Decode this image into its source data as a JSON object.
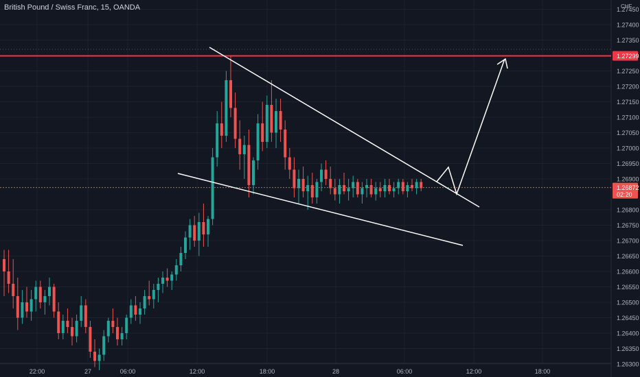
{
  "header": {
    "symbol_title": "British Pound / Swiss Franc, 15, OANDA"
  },
  "colors": {
    "background": "#131722",
    "grid": "#1e222d",
    "up": "#26a69a",
    "down": "#ef5350",
    "resistance_line": "#f23645",
    "drawing": "#ffffff",
    "axis_text": "#b2b5be",
    "current_price_line": "#ef5350"
  },
  "price_axis": {
    "currency": "CHF",
    "labels": [
      "1.27450",
      "1.27400",
      "1.27350",
      "1.27250",
      "1.27200",
      "1.27150",
      "1.27100",
      "1.27050",
      "1.27000",
      "1.26950",
      "1.26900",
      "1.26800",
      "1.26750",
      "1.26700",
      "1.26650",
      "1.26600",
      "1.26550",
      "1.26500",
      "1.26450",
      "1.26400",
      "1.26350",
      "1.26300"
    ],
    "resistance_label": "1.27299",
    "current_price_label": "1.26872",
    "countdown_label": "02:20"
  },
  "time_axis": {
    "labels": [
      "22:00",
      "27",
      "06:00",
      "12:00",
      "18:00",
      "28",
      "06:00",
      "12:00",
      "18:00"
    ]
  },
  "chart_data": {
    "type": "candlestick",
    "y_axis_unit": "CHF",
    "ylim": [
      1.2628,
      1.2748
    ],
    "time_range": [
      "26 20:00",
      "28 22:00"
    ],
    "interval": "15m",
    "resistance_level": 1.27299,
    "current_price": 1.26872,
    "candles": [
      [
        1.2664,
        1.2667,
        1.2652,
        1.266
      ],
      [
        1.266,
        1.2667,
        1.2653,
        1.2656
      ],
      [
        1.2656,
        1.2664,
        1.2648,
        1.2652
      ],
      [
        1.2652,
        1.2658,
        1.2641,
        1.2645
      ],
      [
        1.2645,
        1.2654,
        1.2643,
        1.265
      ],
      [
        1.265,
        1.2655,
        1.2645,
        1.2647
      ],
      [
        1.2647,
        1.2654,
        1.2644,
        1.2651
      ],
      [
        1.2651,
        1.2657,
        1.2647,
        1.2655
      ],
      [
        1.2655,
        1.2657,
        1.2648,
        1.265
      ],
      [
        1.265,
        1.2654,
        1.2646,
        1.2652
      ],
      [
        1.2652,
        1.2658,
        1.2649,
        1.2655
      ],
      [
        1.2655,
        1.2656,
        1.2645,
        1.2647
      ],
      [
        1.2647,
        1.265,
        1.2638,
        1.264
      ],
      [
        1.264,
        1.2646,
        1.2638,
        1.2644
      ],
      [
        1.2644,
        1.2648,
        1.264,
        1.2642
      ],
      [
        1.2642,
        1.2645,
        1.2636,
        1.2639
      ],
      [
        1.2639,
        1.2646,
        1.2637,
        1.2644
      ],
      [
        1.2644,
        1.2652,
        1.2642,
        1.2649
      ],
      [
        1.2649,
        1.2651,
        1.264,
        1.2642
      ],
      [
        1.2642,
        1.2644,
        1.2632,
        1.2634
      ],
      [
        1.2634,
        1.2638,
        1.2629,
        1.2631
      ],
      [
        1.2631,
        1.2635,
        1.2628,
        1.2633
      ],
      [
        1.2633,
        1.2641,
        1.2631,
        1.2639
      ],
      [
        1.2639,
        1.2645,
        1.2637,
        1.2644
      ],
      [
        1.2644,
        1.2648,
        1.264,
        1.2642
      ],
      [
        1.2642,
        1.2645,
        1.2636,
        1.2638
      ],
      [
        1.2638,
        1.2642,
        1.2636,
        1.264
      ],
      [
        1.264,
        1.2646,
        1.2638,
        1.2645
      ],
      [
        1.2645,
        1.2651,
        1.2643,
        1.2649
      ],
      [
        1.2649,
        1.2652,
        1.2644,
        1.2646
      ],
      [
        1.2646,
        1.265,
        1.2643,
        1.2648
      ],
      [
        1.2648,
        1.2654,
        1.2646,
        1.2652
      ],
      [
        1.2652,
        1.2657,
        1.2649,
        1.2651
      ],
      [
        1.2651,
        1.2656,
        1.2648,
        1.2654
      ],
      [
        1.2654,
        1.2658,
        1.265,
        1.2656
      ],
      [
        1.2656,
        1.266,
        1.2653,
        1.2658
      ],
      [
        1.2658,
        1.2661,
        1.2655,
        1.2657
      ],
      [
        1.2657,
        1.266,
        1.2654,
        1.2659
      ],
      [
        1.2659,
        1.2664,
        1.2657,
        1.2662
      ],
      [
        1.2662,
        1.2668,
        1.266,
        1.2666
      ],
      [
        1.2666,
        1.2673,
        1.2664,
        1.2671
      ],
      [
        1.2671,
        1.2677,
        1.2667,
        1.2675
      ],
      [
        1.2675,
        1.2678,
        1.2668,
        1.267
      ],
      [
        1.267,
        1.2679,
        1.2665,
        1.2676
      ],
      [
        1.2676,
        1.2682,
        1.2668,
        1.2672
      ],
      [
        1.2672,
        1.2678,
        1.2668,
        1.2677
      ],
      [
        1.2677,
        1.27,
        1.2675,
        1.2697
      ],
      [
        1.2697,
        1.2712,
        1.2694,
        1.2708
      ],
      [
        1.2708,
        1.2715,
        1.27,
        1.2704
      ],
      [
        1.2704,
        1.2725,
        1.2702,
        1.2722
      ],
      [
        1.2722,
        1.273,
        1.271,
        1.2713
      ],
      [
        1.2713,
        1.2718,
        1.27,
        1.2703
      ],
      [
        1.2703,
        1.2709,
        1.2693,
        1.2698
      ],
      [
        1.2698,
        1.2704,
        1.269,
        1.2701
      ],
      [
        1.2701,
        1.2706,
        1.2684,
        1.2688
      ],
      [
        1.2688,
        1.2697,
        1.2685,
        1.2696
      ],
      [
        1.2696,
        1.2711,
        1.2693,
        1.2708
      ],
      [
        1.2708,
        1.2715,
        1.2699,
        1.2702
      ],
      [
        1.2702,
        1.2717,
        1.27,
        1.2714
      ],
      [
        1.2714,
        1.2722,
        1.2702,
        1.2705
      ],
      [
        1.2705,
        1.2716,
        1.27,
        1.2712
      ],
      [
        1.2712,
        1.2716,
        1.2702,
        1.2706
      ],
      [
        1.2706,
        1.2709,
        1.2693,
        1.2697
      ],
      [
        1.2697,
        1.27,
        1.269,
        1.2693
      ],
      [
        1.2693,
        1.2697,
        1.2684,
        1.2687
      ],
      [
        1.2687,
        1.2693,
        1.2682,
        1.269
      ],
      [
        1.269,
        1.2694,
        1.2684,
        1.2686
      ],
      [
        1.2686,
        1.2691,
        1.268,
        1.2688
      ],
      [
        1.2688,
        1.2692,
        1.2682,
        1.2684
      ],
      [
        1.2684,
        1.269,
        1.2682,
        1.2689
      ],
      [
        1.2689,
        1.2695,
        1.2686,
        1.2693
      ],
      [
        1.2693,
        1.2696,
        1.2688,
        1.269
      ],
      [
        1.269,
        1.2694,
        1.2685,
        1.2687
      ],
      [
        1.2687,
        1.269,
        1.2683,
        1.2685
      ],
      [
        1.2685,
        1.269,
        1.2682,
        1.2688
      ],
      [
        1.2688,
        1.2692,
        1.2685,
        1.2686
      ],
      [
        1.2686,
        1.269,
        1.2683,
        1.2687
      ],
      [
        1.2687,
        1.2691,
        1.2684,
        1.2689
      ],
      [
        1.2689,
        1.269,
        1.2684,
        1.2685
      ],
      [
        1.2685,
        1.2689,
        1.2682,
        1.2687
      ],
      [
        1.2687,
        1.269,
        1.2684,
        1.2688
      ],
      [
        1.2688,
        1.269,
        1.2684,
        1.2685
      ],
      [
        1.2685,
        1.2689,
        1.2683,
        1.2687
      ],
      [
        1.2687,
        1.2689,
        1.2684,
        1.2686
      ],
      [
        1.2686,
        1.269,
        1.2684,
        1.2688
      ],
      [
        1.2688,
        1.269,
        1.2685,
        1.2686
      ],
      [
        1.2686,
        1.2689,
        1.2684,
        1.2687
      ],
      [
        1.2687,
        1.269,
        1.2685,
        1.2689
      ],
      [
        1.2689,
        1.269,
        1.2685,
        1.2686
      ],
      [
        1.2686,
        1.2689,
        1.2684,
        1.2688
      ],
      [
        1.2688,
        1.269,
        1.2686,
        1.2687
      ],
      [
        1.2687,
        1.269,
        1.2685,
        1.2689
      ],
      [
        1.2689,
        1.269,
        1.2686,
        1.2687
      ]
    ]
  }
}
